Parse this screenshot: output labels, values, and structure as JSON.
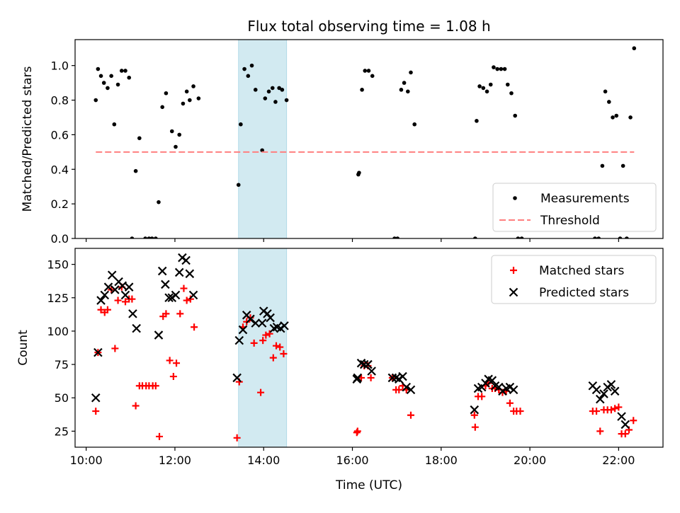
{
  "title": "Flux total observing time = 1.08 h",
  "colors": {
    "measurement": "#000000",
    "threshold": "#ff7f7f",
    "matched": "#ff0000",
    "predicted": "#000000",
    "span": "#add8e6"
  },
  "chart_data": [
    {
      "type": "scatter",
      "title": "Flux total observing time = 1.08 h",
      "xlabel": "",
      "ylabel": "Matched/Predicted stars",
      "xlim": [
        "09:45",
        "23:00"
      ],
      "ylim": [
        0,
        1.15
      ],
      "yticks": [
        "0.0",
        "0.2",
        "0.4",
        "0.6",
        "0.8",
        "1.0"
      ],
      "ytick_values": [
        0,
        0.2,
        0.4,
        0.6,
        0.8,
        1.0
      ],
      "highlight_span": [
        "13:26",
        "14:31"
      ],
      "legend_position": "lower right",
      "grid": false,
      "series": [
        {
          "name": "Measurements",
          "marker": "dot",
          "points": [
            [
              "10:13",
              0.8
            ],
            [
              "10:16",
              0.98
            ],
            [
              "10:20",
              0.94
            ],
            [
              "10:24",
              0.9
            ],
            [
              "10:29",
              0.87
            ],
            [
              "10:34",
              0.94
            ],
            [
              "10:38",
              0.66
            ],
            [
              "10:43",
              0.89
            ],
            [
              "10:48",
              0.97
            ],
            [
              "10:53",
              0.97
            ],
            [
              "10:58",
              0.93
            ],
            [
              "11:02",
              0.0
            ],
            [
              "11:07",
              0.39
            ],
            [
              "11:12",
              0.58
            ],
            [
              "11:20",
              0.0
            ],
            [
              "11:25",
              0.0
            ],
            [
              "11:29",
              0.0
            ],
            [
              "11:34",
              0.0
            ],
            [
              "11:38",
              0.21
            ],
            [
              "11:43",
              0.76
            ],
            [
              "11:48",
              0.84
            ],
            [
              "11:56",
              0.62
            ],
            [
              "12:01",
              0.53
            ],
            [
              "12:06",
              0.6
            ],
            [
              "12:11",
              0.78
            ],
            [
              "12:16",
              0.85
            ],
            [
              "12:20",
              0.8
            ],
            [
              "12:25",
              0.88
            ],
            [
              "12:32",
              0.81
            ],
            [
              "13:26",
              0.31
            ],
            [
              "13:29",
              0.66
            ],
            [
              "13:34",
              0.98
            ],
            [
              "13:39",
              0.94
            ],
            [
              "13:44",
              1.0
            ],
            [
              "13:49",
              0.86
            ],
            [
              "13:58",
              0.51
            ],
            [
              "14:02",
              0.81
            ],
            [
              "14:07",
              0.85
            ],
            [
              "14:12",
              0.87
            ],
            [
              "14:16",
              0.79
            ],
            [
              "14:21",
              0.87
            ],
            [
              "14:25",
              0.86
            ],
            [
              "14:31",
              0.8
            ],
            [
              "16:08",
              0.37
            ],
            [
              "16:09",
              0.38
            ],
            [
              "16:13",
              0.86
            ],
            [
              "16:17",
              0.97
            ],
            [
              "16:22",
              0.97
            ],
            [
              "16:27",
              0.94
            ],
            [
              "16:57",
              0.0
            ],
            [
              "17:01",
              0.0
            ],
            [
              "17:06",
              0.86
            ],
            [
              "17:10",
              0.9
            ],
            [
              "17:15",
              0.85
            ],
            [
              "17:19",
              0.96
            ],
            [
              "17:24",
              0.66
            ],
            [
              "18:46",
              0.0
            ],
            [
              "18:48",
              0.68
            ],
            [
              "18:52",
              0.88
            ],
            [
              "18:57",
              0.87
            ],
            [
              "19:02",
              0.85
            ],
            [
              "19:07",
              0.89
            ],
            [
              "19:11",
              0.99
            ],
            [
              "19:16",
              0.98
            ],
            [
              "19:21",
              0.98
            ],
            [
              "19:26",
              0.98
            ],
            [
              "19:30",
              0.89
            ],
            [
              "19:35",
              0.84
            ],
            [
              "19:40",
              0.71
            ],
            [
              "19:44",
              0.0
            ],
            [
              "19:49",
              0.0
            ],
            [
              "21:28",
              0.0
            ],
            [
              "21:33",
              0.0
            ],
            [
              "21:38",
              0.42
            ],
            [
              "21:42",
              0.85
            ],
            [
              "21:47",
              0.79
            ],
            [
              "21:52",
              0.7
            ],
            [
              "21:57",
              0.71
            ],
            [
              "22:02",
              0.0
            ],
            [
              "22:06",
              0.42
            ],
            [
              "22:11",
              0.0
            ],
            [
              "22:16",
              0.7
            ],
            [
              "22:21",
              1.1
            ]
          ]
        },
        {
          "name": "Threshold",
          "style": "dashed",
          "points": [
            [
              "10:13",
              0.5
            ],
            [
              "22:21",
              0.5
            ]
          ]
        }
      ]
    },
    {
      "type": "scatter",
      "title": "",
      "xlabel": "Time (UTC)",
      "ylabel": "Count",
      "xlim": [
        "09:45",
        "23:00"
      ],
      "ylim": [
        13,
        162
      ],
      "xticks": [
        "10:00",
        "12:00",
        "14:00",
        "16:00",
        "18:00",
        "20:00",
        "22:00"
      ],
      "yticks": [
        "25",
        "50",
        "75",
        "100",
        "125",
        "150"
      ],
      "ytick_values": [
        25,
        50,
        75,
        100,
        125,
        150
      ],
      "highlight_span": [
        "13:26",
        "14:31"
      ],
      "legend_position": "upper right",
      "grid": false,
      "series": [
        {
          "name": "Matched stars",
          "marker": "plus",
          "points": [
            [
              "10:13",
              40
            ],
            [
              "10:16",
              84
            ],
            [
              "10:20",
              116
            ],
            [
              "10:25",
              114
            ],
            [
              "10:29",
              116
            ],
            [
              "10:34",
              131
            ],
            [
              "10:39",
              87
            ],
            [
              "10:43",
              123
            ],
            [
              "10:48",
              133
            ],
            [
              "10:53",
              122
            ],
            [
              "10:58",
              124
            ],
            [
              "11:02",
              124
            ],
            [
              "11:07",
              44
            ],
            [
              "11:12",
              59
            ],
            [
              "11:16",
              59
            ],
            [
              "11:21",
              59
            ],
            [
              "11:25",
              59
            ],
            [
              "11:30",
              59
            ],
            [
              "11:34",
              59
            ],
            [
              "11:39",
              21
            ],
            [
              "11:44",
              111
            ],
            [
              "11:48",
              113
            ],
            [
              "11:53",
              78
            ],
            [
              "11:58",
              66
            ],
            [
              "12:02",
              76
            ],
            [
              "12:07",
              113
            ],
            [
              "12:12",
              132
            ],
            [
              "12:16",
              123
            ],
            [
              "12:21",
              124
            ],
            [
              "12:26",
              103
            ],
            [
              "13:24",
              20
            ],
            [
              "13:27",
              62
            ],
            [
              "13:32",
              103
            ],
            [
              "13:37",
              107
            ],
            [
              "13:42",
              110
            ],
            [
              "13:47",
              91
            ],
            [
              "13:56",
              54
            ],
            [
              "13:59",
              93
            ],
            [
              "14:03",
              97
            ],
            [
              "14:08",
              98
            ],
            [
              "14:13",
              80
            ],
            [
              "14:17",
              89
            ],
            [
              "14:22",
              88
            ],
            [
              "14:27",
              83
            ],
            [
              "16:06",
              24
            ],
            [
              "16:07",
              25
            ],
            [
              "16:12",
              65
            ],
            [
              "16:16",
              74
            ],
            [
              "16:21",
              74
            ],
            [
              "16:25",
              65
            ],
            [
              "16:54",
              65
            ],
            [
              "16:59",
              56
            ],
            [
              "17:03",
              56
            ],
            [
              "17:08",
              59
            ],
            [
              "17:13",
              56
            ],
            [
              "17:19",
              37
            ],
            [
              "18:45",
              37
            ],
            [
              "18:46",
              28
            ],
            [
              "18:50",
              51
            ],
            [
              "18:55",
              51
            ],
            [
              "19:00",
              59
            ],
            [
              "19:04",
              61
            ],
            [
              "19:09",
              57
            ],
            [
              "19:13",
              57
            ],
            [
              "19:18",
              56
            ],
            [
              "19:23",
              54
            ],
            [
              "19:28",
              55
            ],
            [
              "19:33",
              46
            ],
            [
              "19:38",
              40
            ],
            [
              "19:42",
              40
            ],
            [
              "19:47",
              40
            ],
            [
              "21:25",
              40
            ],
            [
              "21:30",
              40
            ],
            [
              "21:35",
              25
            ],
            [
              "21:40",
              41
            ],
            [
              "21:45",
              41
            ],
            [
              "21:50",
              41
            ],
            [
              "21:55",
              42
            ],
            [
              "22:00",
              43
            ],
            [
              "22:04",
              23
            ],
            [
              "22:09",
              23
            ],
            [
              "22:14",
              26
            ],
            [
              "22:20",
              33
            ]
          ]
        },
        {
          "name": "Predicted stars",
          "marker": "cross",
          "points": [
            [
              "10:13",
              50
            ],
            [
              "10:16",
              84
            ],
            [
              "10:20",
              123
            ],
            [
              "10:25",
              127
            ],
            [
              "10:30",
              133
            ],
            [
              "10:35",
              142
            ],
            [
              "10:39",
              131
            ],
            [
              "10:44",
              137
            ],
            [
              "10:49",
              134
            ],
            [
              "10:53",
              127
            ],
            [
              "10:58",
              133
            ],
            [
              "11:03",
              113
            ],
            [
              "11:08",
              102
            ],
            [
              "11:38",
              97
            ],
            [
              "11:43",
              145
            ],
            [
              "11:47",
              135
            ],
            [
              "11:52",
              125
            ],
            [
              "11:56",
              125
            ],
            [
              "12:01",
              127
            ],
            [
              "12:06",
              144
            ],
            [
              "12:10",
              155
            ],
            [
              "12:15",
              153
            ],
            [
              "12:20",
              143
            ],
            [
              "12:25",
              127
            ],
            [
              "13:24",
              65
            ],
            [
              "13:27",
              93
            ],
            [
              "13:32",
              101
            ],
            [
              "13:37",
              112
            ],
            [
              "13:42",
              109
            ],
            [
              "13:49",
              106
            ],
            [
              "13:58",
              106
            ],
            [
              "14:00",
              115
            ],
            [
              "14:05",
              113
            ],
            [
              "14:09",
              110
            ],
            [
              "14:14",
              102
            ],
            [
              "14:18",
              103
            ],
            [
              "14:23",
              102
            ],
            [
              "14:28",
              104
            ],
            [
              "16:06",
              64
            ],
            [
              "16:07",
              65
            ],
            [
              "16:12",
              76
            ],
            [
              "16:16",
              75
            ],
            [
              "16:21",
              75
            ],
            [
              "16:26",
              70
            ],
            [
              "16:54",
              65
            ],
            [
              "16:59",
              65
            ],
            [
              "17:03",
              64
            ],
            [
              "17:08",
              66
            ],
            [
              "17:13",
              58
            ],
            [
              "17:19",
              56
            ],
            [
              "18:45",
              41
            ],
            [
              "18:50",
              57
            ],
            [
              "18:55",
              58
            ],
            [
              "19:00",
              61
            ],
            [
              "19:04",
              64
            ],
            [
              "19:09",
              63
            ],
            [
              "19:13",
              59
            ],
            [
              "19:18",
              58
            ],
            [
              "19:23",
              55
            ],
            [
              "19:28",
              57
            ],
            [
              "19:33",
              58
            ],
            [
              "19:38",
              56
            ],
            [
              "21:25",
              59
            ],
            [
              "21:30",
              56
            ],
            [
              "21:35",
              49
            ],
            [
              "21:40",
              53
            ],
            [
              "21:45",
              58
            ],
            [
              "21:50",
              60
            ],
            [
              "21:55",
              55
            ],
            [
              "22:04",
              36
            ],
            [
              "22:09",
              30
            ]
          ]
        }
      ]
    }
  ]
}
